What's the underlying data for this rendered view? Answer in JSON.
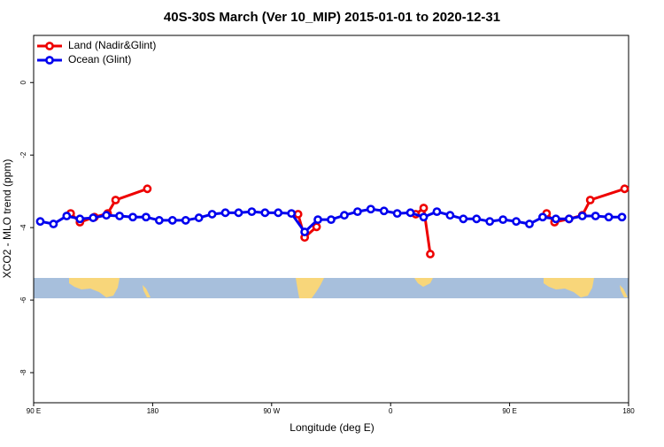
{
  "chart_data": {
    "type": "line",
    "title": "40S-30S March (Ver 10_MIP)   2015-01-01 to 2020-12-31",
    "xlabel": "Longitude (deg E)",
    "ylabel": "XCO2 - MLO trend (ppm)",
    "xlim": [
      90,
      540
    ],
    "ylim": [
      -8.83,
      1.3
    ],
    "xticks": [
      {
        "value": 90,
        "label": "90 E"
      },
      {
        "value": 180,
        "label": "180"
      },
      {
        "value": 270,
        "label": "90 W"
      },
      {
        "value": 360,
        "label": "0"
      },
      {
        "value": 450,
        "label": "90 E"
      },
      {
        "value": 540,
        "label": "180"
      }
    ],
    "yticks": [
      0,
      -2,
      -4,
      -6,
      -8
    ],
    "legend": "top-left",
    "series": [
      {
        "name": "Land (Nadir&Glint)",
        "color": "#ee0000",
        "x": [
          118,
          125,
          136,
          146,
          152,
          176,
          null,
          290,
          295,
          304,
          null,
          379,
          385,
          390,
          null,
          478,
          484,
          495,
          505,
          511,
          537
        ],
        "values": [
          -3.61,
          -3.85,
          -3.71,
          -3.61,
          -3.24,
          -2.93,
          null,
          -3.63,
          -4.27,
          -3.98,
          null,
          -3.63,
          -3.46,
          -4.73,
          null,
          -3.61,
          -3.85,
          -3.76,
          -3.66,
          -3.24,
          -2.93
        ]
      },
      {
        "name": "Ocean (Glint)",
        "color": "#0000ee",
        "x": [
          95,
          105,
          115,
          125,
          135,
          145,
          155,
          165,
          175,
          185,
          195,
          205,
          215,
          225,
          235,
          245,
          255,
          265,
          275,
          285,
          295,
          305,
          315,
          325,
          335,
          345,
          355,
          365,
          375,
          385,
          395,
          405,
          415,
          425,
          435,
          445,
          455,
          465,
          475,
          485,
          495,
          505,
          515,
          525,
          535
        ],
        "values": [
          -3.83,
          -3.9,
          -3.68,
          -3.76,
          -3.73,
          -3.66,
          -3.68,
          -3.71,
          -3.71,
          -3.8,
          -3.8,
          -3.8,
          -3.73,
          -3.63,
          -3.59,
          -3.59,
          -3.56,
          -3.59,
          -3.59,
          -3.61,
          -4.12,
          -3.78,
          -3.78,
          -3.66,
          -3.56,
          -3.49,
          -3.54,
          -3.61,
          -3.59,
          -3.71,
          -3.56,
          -3.66,
          -3.76,
          -3.76,
          -3.83,
          -3.78,
          -3.83,
          -3.9,
          -3.71,
          -3.76,
          -3.76,
          -3.68,
          -3.68,
          -3.71,
          -3.71
        ]
      }
    ]
  }
}
